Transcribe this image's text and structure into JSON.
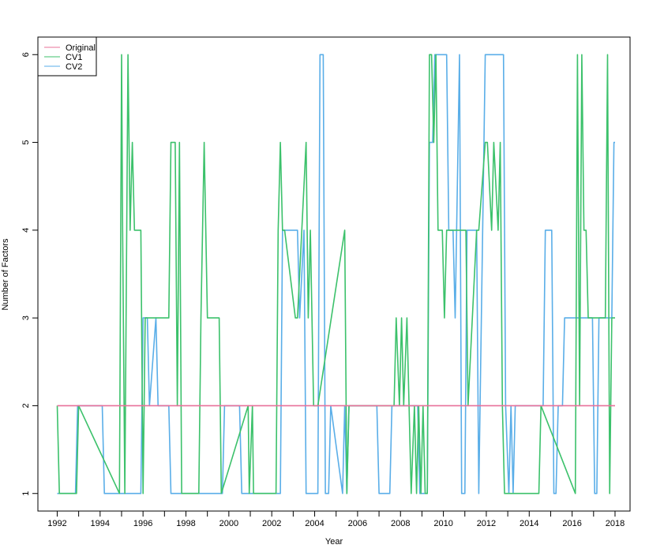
{
  "chart_data": {
    "type": "line",
    "title": "",
    "xlabel": "Year",
    "ylabel": "Number of Factors",
    "xlim": [
      1991.1,
      2018.7
    ],
    "ylim": [
      0.8,
      6.2
    ],
    "x_ticks": [
      1992,
      1994,
      1996,
      1998,
      2000,
      2002,
      2004,
      2006,
      2008,
      2010,
      2012,
      2014,
      2016,
      2018
    ],
    "x_tick_labels": [
      "1992",
      "1994",
      "1996",
      "1998",
      "2000",
      "2002",
      "2004",
      "2006",
      "2008",
      "2010",
      "2012",
      "2014",
      "2016",
      "2018"
    ],
    "y_ticks": [
      1,
      2,
      3,
      4,
      5,
      6
    ],
    "y_tick_labels": [
      "1",
      "2",
      "3",
      "4",
      "5",
      "6"
    ],
    "grid": false,
    "legend_position": "top-left",
    "series": [
      {
        "name": "Original",
        "color": "#e8709a",
        "x": [
          1992,
          2018
        ],
        "y": [
          2,
          2
        ]
      },
      {
        "name": "CV1",
        "color": "#3cc16b",
        "x": [
          1992,
          1992.1,
          1992.9,
          1993.0,
          1994.9,
          1995.0,
          1995.05,
          1995.15,
          1995.3,
          1995.4,
          1995.5,
          1995.6,
          1995.9,
          1996.0,
          1996.1,
          1996.2,
          1997.2,
          1997.3,
          1997.5,
          1997.6,
          1997.7,
          1997.8,
          1998.6,
          1998.7,
          1998.85,
          1999.0,
          1999.1,
          1999.3,
          1999.55,
          1999.65,
          2000.9,
          2000.95,
          2001.1,
          2001.15,
          2002.2,
          2002.3,
          2002.4,
          2002.5,
          2002.6,
          2003.1,
          2003.2,
          2003.6,
          2003.7,
          2003.8,
          2003.95,
          2004.05,
          2004.15,
          2005.4,
          2005.5,
          2005.6,
          2007.7,
          2007.8,
          2007.95,
          2008.05,
          2008.15,
          2008.3,
          2008.4,
          2008.5,
          2008.65,
          2008.75,
          2008.85,
          2008.95,
          2009.05,
          2009.15,
          2009.25,
          2009.35,
          2009.45,
          2009.55,
          2009.65,
          2009.75,
          2009.85,
          2009.95,
          2010.05,
          2010.15,
          2010.25,
          2010.35,
          2010.75,
          2010.85,
          2010.95,
          2011.05,
          2011.15,
          2011.55,
          2011.65,
          2011.95,
          2012.05,
          2012.25,
          2012.35,
          2012.55,
          2012.65,
          2012.75,
          2012.85,
          2012.95,
          2013.05,
          2013.15,
          2014.45,
          2014.55,
          2016.15,
          2016.25,
          2016.35,
          2016.45,
          2016.55,
          2016.65,
          2016.75,
          2016.85,
          2017.55,
          2017.65,
          2017.75,
          2017.85,
          2017.95,
          2018.0
        ],
        "y": [
          2,
          1,
          1,
          2,
          1,
          6,
          4,
          1,
          6,
          4,
          5,
          4,
          4,
          1,
          3,
          3,
          3,
          5,
          5,
          2,
          5,
          1,
          1,
          3,
          5,
          3,
          3,
          3,
          3,
          1,
          2,
          1,
          2,
          1,
          1,
          4,
          5,
          4,
          4,
          3,
          3,
          5,
          3,
          4,
          2,
          2,
          2,
          4,
          1,
          2,
          2,
          3,
          2,
          3,
          2,
          3,
          2,
          1,
          2,
          1,
          2,
          1,
          2,
          1,
          1,
          6,
          6,
          5,
          6,
          4,
          4,
          4,
          3,
          4,
          4,
          4,
          4,
          4,
          4,
          4,
          2,
          4,
          4,
          5,
          5,
          4,
          5,
          4,
          5,
          2,
          1,
          1,
          1,
          1,
          1,
          2,
          1,
          6,
          2,
          6,
          4,
          4,
          3,
          3,
          3,
          6,
          1,
          3,
          3,
          3
        ]
      },
      {
        "name": "CV2",
        "color": "#5aaee8",
        "x": [
          1992,
          1992.05,
          1992.85,
          1992.95,
          1994.1,
          1994.2,
          1995.9,
          1996.0,
          1996.2,
          1996.3,
          1996.6,
          1996.7,
          1997.2,
          1997.3,
          1999.7,
          1999.8,
          2000.5,
          2000.6,
          2002.4,
          2002.5,
          2003.2,
          2003.3,
          2003.5,
          2003.6,
          2004.15,
          2004.25,
          2004.4,
          2004.5,
          2004.65,
          2004.75,
          2005.3,
          2005.4,
          2005.5,
          2005.6,
          2006.9,
          2007.0,
          2007.5,
          2007.6,
          2008.8,
          2008.9,
          2009.25,
          2009.35,
          2009.5,
          2009.6,
          2010.15,
          2010.25,
          2010.45,
          2010.55,
          2010.75,
          2010.85,
          2011.0,
          2011.1,
          2011.55,
          2011.65,
          2011.95,
          2012.05,
          2012.8,
          2012.9,
          2013.05,
          2013.15,
          2013.25,
          2013.35,
          2014.65,
          2014.75,
          2015.05,
          2015.15,
          2015.25,
          2015.35,
          2015.55,
          2015.65,
          2016.95,
          2017.05,
          2017.15,
          2017.25,
          2017.35,
          2017.45,
          2017.85,
          2017.95,
          2018.0
        ],
        "y": [
          1,
          1,
          1,
          2,
          2,
          1,
          1,
          3,
          3,
          2,
          3,
          2,
          2,
          1,
          1,
          2,
          2,
          1,
          1,
          4,
          4,
          3,
          4,
          1,
          1,
          6,
          6,
          1,
          1,
          2,
          1,
          2,
          1,
          2,
          2,
          1,
          1,
          2,
          2,
          1,
          1,
          5,
          5,
          6,
          6,
          4,
          4,
          3,
          6,
          1,
          1,
          4,
          4,
          1,
          6,
          6,
          6,
          2,
          1,
          2,
          1,
          2,
          2,
          4,
          4,
          1,
          1,
          2,
          2,
          3,
          3,
          1,
          1,
          3,
          3,
          3,
          3,
          5,
          5
        ]
      }
    ]
  }
}
